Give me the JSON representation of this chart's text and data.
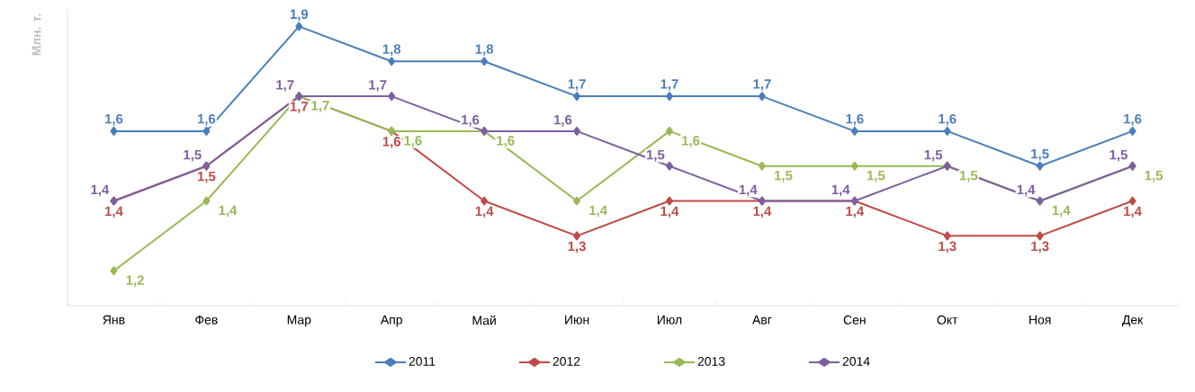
{
  "chart_data": {
    "type": "line",
    "ylabel": "Млн. т.",
    "categories": [
      "Янв",
      "Фев",
      "Мар",
      "Апр",
      "Май",
      "Июн",
      "Июл",
      "Авг",
      "Сен",
      "Окт",
      "Ноя",
      "Дек"
    ],
    "ylim": [
      1.1,
      1.95
    ],
    "tick_labels": "x",
    "legend": "bottom",
    "marker": "diamond",
    "line_style": "solid",
    "grid": false,
    "series": [
      {
        "name": "2011",
        "color": "#4a7ebb",
        "values": [
          1.6,
          1.6,
          1.9,
          1.8,
          1.8,
          1.7,
          1.7,
          1.7,
          1.6,
          1.6,
          1.5,
          1.6
        ],
        "value_labels": [
          "1,6",
          "1,6",
          "1,9",
          "1,8",
          "1,8",
          "1,7",
          "1,7",
          "1,7",
          "1,6",
          "1,6",
          "1,5",
          "1,6"
        ]
      },
      {
        "name": "2012",
        "color": "#be4b48",
        "values": [
          1.4,
          1.5,
          1.7,
          1.6,
          1.4,
          1.3,
          1.4,
          1.4,
          1.4,
          1.3,
          1.3,
          1.4
        ],
        "value_labels": [
          "1,4",
          "1,5",
          "1,7",
          "1,6",
          "1,4",
          "1,3",
          "1,4",
          "1,4",
          "1,4",
          "1,3",
          "1,3",
          "1,4"
        ]
      },
      {
        "name": "2013",
        "color": "#98b954",
        "values": [
          1.2,
          1.4,
          1.7,
          1.6,
          1.6,
          1.4,
          1.6,
          1.5,
          1.5,
          1.5,
          1.4,
          1.5
        ],
        "value_labels": [
          "1,2",
          "1,4",
          "1,7",
          "1,6",
          "1,6",
          "1,4",
          "1,6",
          "1,5",
          "1,5",
          "1,5",
          "1,4",
          "1,5"
        ]
      },
      {
        "name": "2014",
        "color": "#7d5fa0",
        "values": [
          1.4,
          1.5,
          1.7,
          1.7,
          1.6,
          1.6,
          1.5,
          1.4,
          1.4,
          1.5,
          1.4,
          1.5
        ],
        "value_labels": [
          "1,4",
          "1,5",
          "1,7",
          "1,7",
          "1,6",
          "1,6",
          "1,5",
          "1,4",
          "1,4",
          "1,5",
          "1,4",
          "1,5"
        ]
      }
    ]
  }
}
